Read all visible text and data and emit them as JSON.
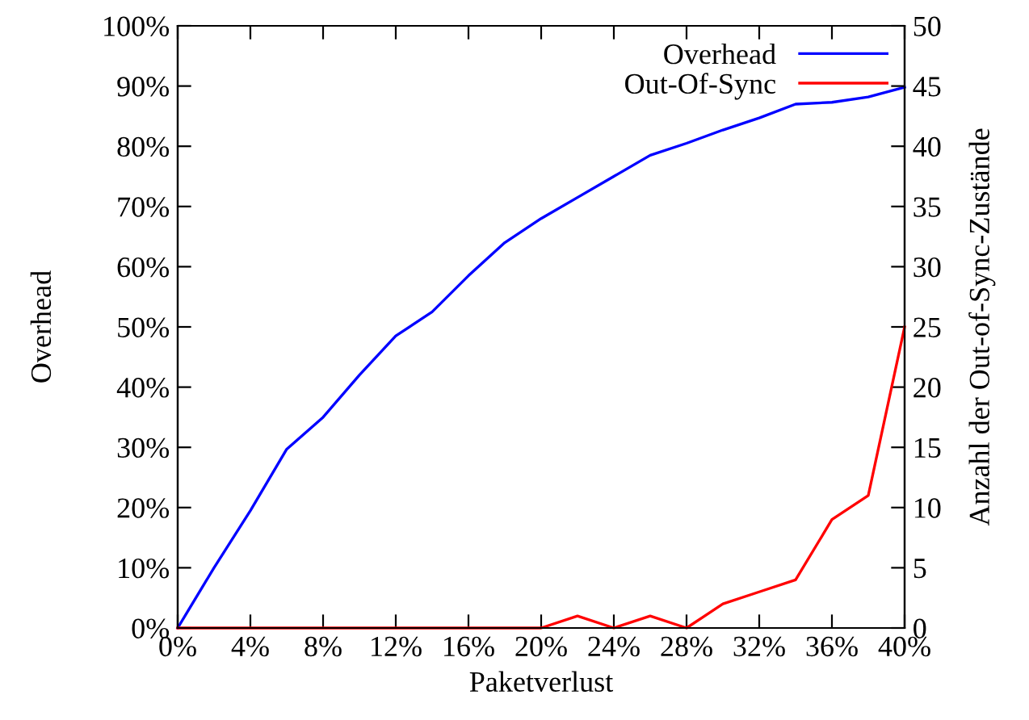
{
  "chart_data": {
    "type": "line",
    "xlabel": "Paketverlust",
    "ylabel": "Overhead",
    "y2label": "Anzahl der Out-of-Sync-Zustände",
    "x": [
      0,
      2,
      4,
      6,
      8,
      10,
      12,
      14,
      16,
      18,
      20,
      22,
      24,
      26,
      28,
      30,
      32,
      34,
      36,
      38,
      40
    ],
    "series": [
      {
        "name": "Overhead",
        "color": "#0000ff",
        "values": [
          0,
          10,
          19.5,
          29.7,
          35,
          42,
          48.5,
          52.5,
          58.5,
          64,
          68,
          71.5,
          75,
          78.5,
          80.5,
          82.7,
          84.7,
          87,
          87.3,
          88.2,
          89.8
        ]
      },
      {
        "name": "Out-Of-Sync",
        "color": "#ff0000",
        "axis": "y2",
        "values": [
          0,
          0,
          0,
          0,
          0,
          0,
          0,
          0,
          0,
          0,
          0,
          1,
          0,
          1,
          0,
          2,
          3,
          4,
          9,
          11,
          25
        ]
      }
    ],
    "xlim": [
      0,
      40
    ],
    "xticks": [
      {
        "value": 0,
        "label": "0%"
      },
      {
        "value": 4,
        "label": "4%"
      },
      {
        "value": 8,
        "label": "8%"
      },
      {
        "value": 12,
        "label": "12%"
      },
      {
        "value": 16,
        "label": "16%"
      },
      {
        "value": 20,
        "label": "20%"
      },
      {
        "value": 24,
        "label": "24%"
      },
      {
        "value": 28,
        "label": "28%"
      },
      {
        "value": 32,
        "label": "32%"
      },
      {
        "value": 36,
        "label": "36%"
      },
      {
        "value": 40,
        "label": "40%"
      }
    ],
    "ylim": [
      0,
      100
    ],
    "yticks": [
      {
        "value": 0,
        "label": "0%"
      },
      {
        "value": 10,
        "label": "10%"
      },
      {
        "value": 20,
        "label": "20%"
      },
      {
        "value": 30,
        "label": "30%"
      },
      {
        "value": 40,
        "label": "40%"
      },
      {
        "value": 50,
        "label": "50%"
      },
      {
        "value": 60,
        "label": "60%"
      },
      {
        "value": 70,
        "label": "70%"
      },
      {
        "value": 80,
        "label": "80%"
      },
      {
        "value": 90,
        "label": "90%"
      },
      {
        "value": 100,
        "label": "100%"
      }
    ],
    "y2lim": [
      0,
      50
    ],
    "y2ticks": [
      0,
      5,
      10,
      15,
      20,
      25,
      30,
      35,
      40,
      45,
      50
    ],
    "grid": false,
    "legend": "top right",
    "marker": "none",
    "line_style": "solid"
  }
}
